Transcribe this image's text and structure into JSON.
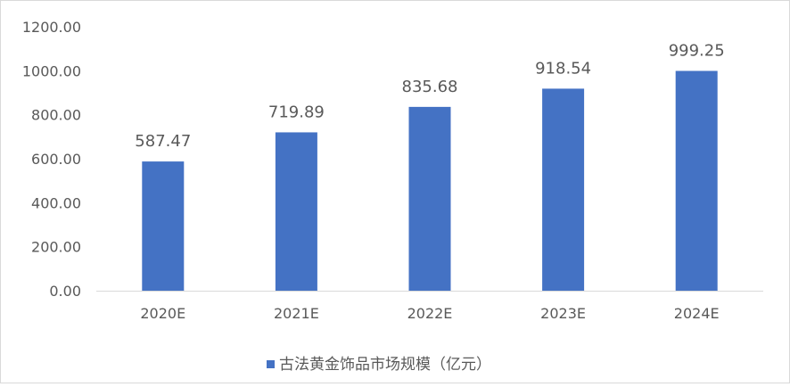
{
  "chart_data": {
    "type": "bar",
    "categories": [
      "2020E",
      "2021E",
      "2022E",
      "2023E",
      "2024E"
    ],
    "series": [
      {
        "name": "古法黄金饰品市场规模（亿元）",
        "values": [
          587.47,
          719.89,
          835.68,
          918.54,
          999.25
        ],
        "color": "#4472C4"
      }
    ],
    "data_labels": [
      "587.47",
      "719.89",
      "835.68",
      "918.54",
      "999.25"
    ],
    "y_ticks": [
      "0.00",
      "200.00",
      "400.00",
      "600.00",
      "800.00",
      "1000.00",
      "1200.00"
    ],
    "ylim": [
      0,
      1200
    ],
    "y_step": 200,
    "grid": false,
    "legend_position": "bottom",
    "title": "",
    "xlabel": "",
    "ylabel": ""
  }
}
